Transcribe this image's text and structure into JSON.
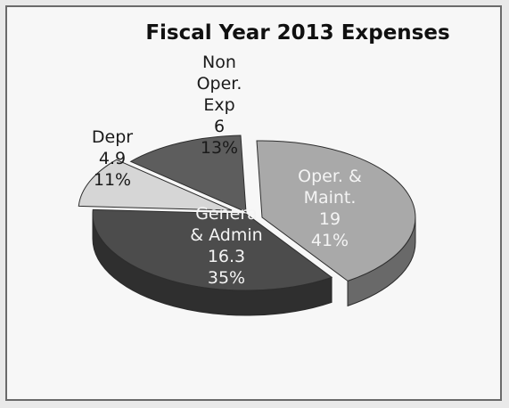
{
  "chart_data": {
    "type": "pie",
    "title": "Fiscal Year 2013 Expenses",
    "slices": [
      {
        "label_lines": [
          "Oper. &",
          "Maint."
        ],
        "value": "19",
        "percent": "41%",
        "value_num": 19,
        "color": "#a9a9a9"
      },
      {
        "label_lines": [
          "Genera",
          "& Admin"
        ],
        "value": "16.3",
        "percent": "35%",
        "value_num": 16.3,
        "color": "#4c4c4c"
      },
      {
        "label_lines": [
          "Depr"
        ],
        "value": "4.9",
        "percent": "11%",
        "value_num": 4.9,
        "color": "#d6d6d6"
      },
      {
        "label_lines": [
          "Non",
          "Oper.",
          "Exp"
        ],
        "value": "6",
        "percent": "13%",
        "value_num": 6,
        "color": "#5d5d5d"
      }
    ]
  }
}
